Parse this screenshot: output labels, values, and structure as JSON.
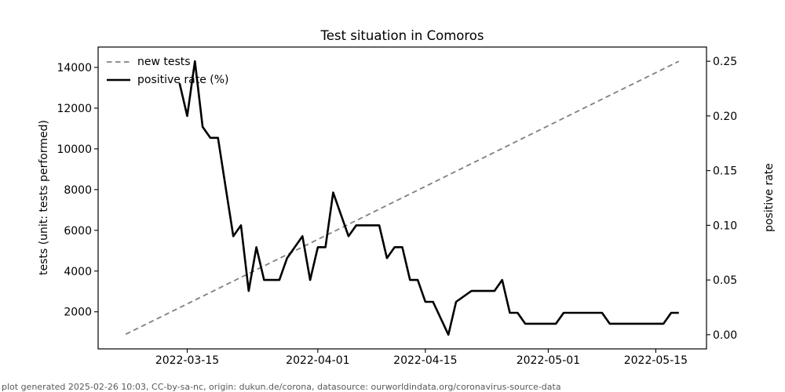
{
  "figure": {
    "footer": "plot generated 2025-02-26 10:03, CC-by-sa-nc, origin: dukun.de/corona, datasource: ourworldindata.org/coronavirus-source-data"
  },
  "chart_data": {
    "type": "line",
    "title": "Test situation in Comoros",
    "xlabel": "",
    "ylabel_left": "tests (unit: tests performed)",
    "ylabel_right": "positive rate",
    "grid": false,
    "legend_position": "upper left",
    "x_ticks": [
      "2022-03-15",
      "2022-04-01",
      "2022-04-15",
      "2022-05-01",
      "2022-05-15"
    ],
    "y_ticks_left": [
      2000,
      4000,
      6000,
      8000,
      10000,
      12000,
      14000
    ],
    "y_ticks_right": [
      0.0,
      0.05,
      0.1,
      0.15,
      0.2,
      0.25
    ],
    "ylim_left": [
      180,
      15000
    ],
    "ylim_right": [
      -0.013,
      0.263
    ],
    "xlim_days_from": "2022-03-15",
    "xlim_days": [
      -11.6,
      67.6
    ],
    "colors": {
      "new_tests": "#808080",
      "positive_rate": "#000000"
    },
    "series": [
      {
        "name": "new tests",
        "axis": "left",
        "color": "#808080",
        "dash": true,
        "width": 1.8,
        "dates": [
          "2022-03-07",
          "2022-05-18"
        ],
        "values": [
          900,
          14300
        ]
      },
      {
        "name": "positive rate (%)",
        "axis": "right",
        "color": "#000000",
        "dash": false,
        "width": 2.6,
        "dates": [
          "2022-03-14",
          "2022-03-15",
          "2022-03-16",
          "2022-03-17",
          "2022-03-18",
          "2022-03-19",
          "2022-03-20",
          "2022-03-21",
          "2022-03-22",
          "2022-03-23",
          "2022-03-24",
          "2022-03-25",
          "2022-03-26",
          "2022-03-27",
          "2022-03-28",
          "2022-03-29",
          "2022-03-30",
          "2022-03-31",
          "2022-04-01",
          "2022-04-02",
          "2022-04-03",
          "2022-04-04",
          "2022-04-05",
          "2022-04-06",
          "2022-04-07",
          "2022-04-08",
          "2022-04-09",
          "2022-04-10",
          "2022-04-11",
          "2022-04-12",
          "2022-04-13",
          "2022-04-14",
          "2022-04-15",
          "2022-04-16",
          "2022-04-17",
          "2022-04-18",
          "2022-04-19",
          "2022-04-20",
          "2022-04-21",
          "2022-04-22",
          "2022-04-23",
          "2022-04-24",
          "2022-04-25",
          "2022-04-26",
          "2022-04-27",
          "2022-04-28",
          "2022-04-29",
          "2022-04-30",
          "2022-05-01",
          "2022-05-02",
          "2022-05-03",
          "2022-05-04",
          "2022-05-05",
          "2022-05-06",
          "2022-05-07",
          "2022-05-08",
          "2022-05-09",
          "2022-05-10",
          "2022-05-11",
          "2022-05-12",
          "2022-05-13",
          "2022-05-14",
          "2022-05-15",
          "2022-05-16",
          "2022-05-17",
          "2022-05-18"
        ],
        "values": [
          0.23,
          0.2,
          0.25,
          0.19,
          0.18,
          0.18,
          0.135,
          0.09,
          0.1,
          0.04,
          0.08,
          0.05,
          0.05,
          0.05,
          0.07,
          0.08,
          0.09,
          0.05,
          0.08,
          0.08,
          0.13,
          0.11,
          0.09,
          0.1,
          0.1,
          0.1,
          0.1,
          0.07,
          0.08,
          0.08,
          0.05,
          0.05,
          0.03,
          0.03,
          0.015,
          0.0,
          0.03,
          0.035,
          0.04,
          0.04,
          0.04,
          0.04,
          0.05,
          0.02,
          0.02,
          0.01,
          0.01,
          0.01,
          0.01,
          0.01,
          0.02,
          0.02,
          0.02,
          0.02,
          0.02,
          0.02,
          0.01,
          0.01,
          0.01,
          0.01,
          0.01,
          0.01,
          0.01,
          0.01,
          0.02,
          0.02
        ]
      }
    ]
  }
}
